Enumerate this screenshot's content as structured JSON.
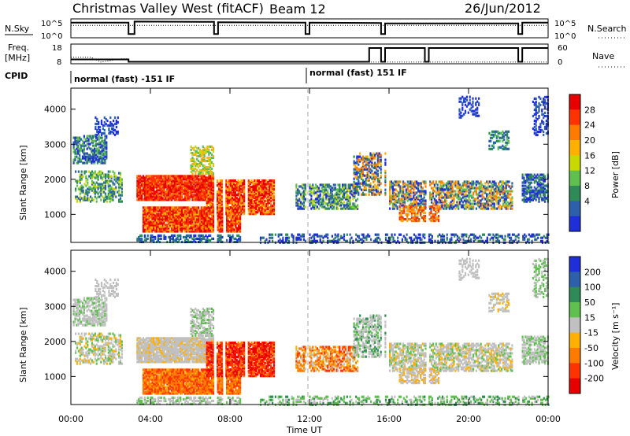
{
  "header": {
    "title": "Christmas Valley West (fitACF)",
    "beam": "Beam 12",
    "date": "26/Jun/2012"
  },
  "params_panel": {
    "nsky_label": "N.Sky",
    "nsearch_label": "N.Search",
    "freq_label_line1": "Freq.",
    "freq_label_line2": "[MHz]",
    "nave_label": "Nave",
    "cpid_label": "CPID",
    "noise_ticks": [
      "10^5",
      "10^0"
    ],
    "noise_right_ticks": [
      "10^5",
      "10^0"
    ],
    "freq_ticks": [
      "18",
      "8"
    ],
    "nave_ticks": [
      "60",
      "0"
    ],
    "cpid_segments": [
      {
        "label": "normal (fast) -151 IF",
        "start_hour": 0.0
      },
      {
        "label": "normal (fast) 151 IF",
        "start_hour": 12.0
      }
    ]
  },
  "chart_data": [
    {
      "type": "heatmap",
      "name": "power",
      "ylabel": "Slant Range [km]",
      "colorbar_label": "Power [dB]",
      "colorbar_ticks": [
        "28",
        "24",
        "20",
        "16",
        "12",
        "8",
        "4"
      ],
      "colorbar_colors": [
        "#e60000",
        "#ff3300",
        "#ff7a00",
        "#ffb000",
        "#c8d800",
        "#5fc050",
        "#2e8a57",
        "#2e5faa",
        "#1e2ed8"
      ],
      "yticks": [
        1000,
        2000,
        3000,
        4000
      ],
      "ylim": [
        200,
        4600
      ],
      "xlim_hours": [
        0,
        24
      ]
    },
    {
      "type": "heatmap",
      "name": "velocity",
      "ylabel": "Slant Range [km]",
      "colorbar_label": "Velocity [m s⁻¹]",
      "colorbar_ticks": [
        "200",
        "100",
        "50",
        "15",
        "-15",
        "-50",
        "-100",
        "-200"
      ],
      "colorbar_colors": [
        "#1e2ed8",
        "#2e5faa",
        "#2e8a57",
        "#5fc050",
        "#c0c0c0",
        "#ffb000",
        "#ff7a00",
        "#ff3300",
        "#e60000"
      ],
      "yticks": [
        1000,
        2000,
        3000,
        4000
      ],
      "ylim": [
        200,
        4600
      ],
      "xlim_hours": [
        0,
        24
      ]
    }
  ],
  "x_axis": {
    "label": "Time UT",
    "ticks": [
      "00:00",
      "04:00",
      "08:00",
      "12:00",
      "16:00",
      "20:00",
      "00:00"
    ]
  }
}
